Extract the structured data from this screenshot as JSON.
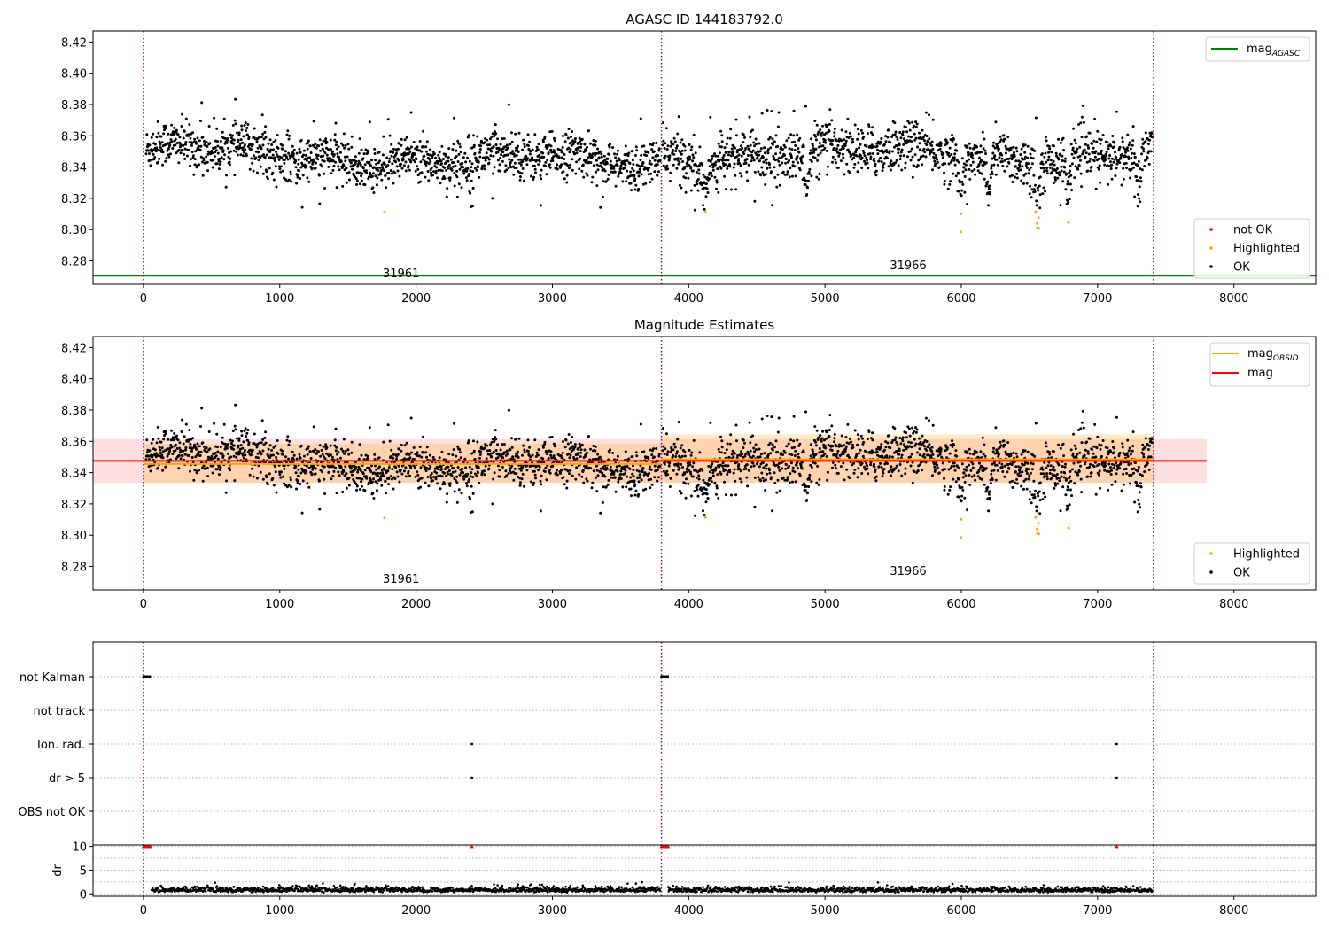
{
  "chart_data": [
    {
      "type": "scatter",
      "title": "AGASC ID 144183792.0",
      "xlim": [
        -370,
        8600
      ],
      "ylim": [
        8.265,
        8.427
      ],
      "x_ticks": [
        0,
        1000,
        2000,
        3000,
        4000,
        5000,
        6000,
        7000,
        8000
      ],
      "y_ticks": [
        8.28,
        8.3,
        8.32,
        8.34,
        8.36,
        8.38,
        8.4,
        8.42
      ],
      "grid": false,
      "obsid_boundaries": [
        0,
        3800,
        7410
      ],
      "obsid_labels": [
        {
          "text": "31961",
          "x": 1890,
          "y": 8.2725
        },
        {
          "text": "31966",
          "x": 5610,
          "y": 8.2775
        }
      ],
      "reference_lines": [
        {
          "name": "mag_AGASC",
          "value": 8.2705,
          "color": "#008000"
        }
      ],
      "segments": [
        {
          "x_start": 20,
          "x_end": 3790,
          "mean": 8.3455,
          "spread": 0.013
        },
        {
          "x_start": 3810,
          "x_end": 7400,
          "mean": 8.3485,
          "spread": 0.0145
        }
      ],
      "dips": [
        4120,
        4870,
        6000,
        6200,
        6560,
        6780,
        7300
      ],
      "series": [
        {
          "name": "not OK",
          "color": "#ff0000"
        },
        {
          "name": "Highlighted",
          "color": "#ffa500"
        },
        {
          "name": "OK",
          "color": "#000000"
        }
      ],
      "legends": [
        {
          "position": "upper-right",
          "entries": [
            {
              "label": "mag",
              "sub": "AGASC",
              "color": "#008000",
              "kind": "line"
            }
          ]
        },
        {
          "position": "lower-right",
          "entries": [
            {
              "label": "not OK",
              "color": "#ff0000",
              "kind": "point"
            },
            {
              "label": "Highlighted",
              "color": "#ffa500",
              "kind": "point"
            },
            {
              "label": "OK",
              "color": "#000000",
              "kind": "point"
            }
          ]
        }
      ]
    },
    {
      "type": "scatter",
      "title": "Magnitude Estimates",
      "xlim": [
        -370,
        8600
      ],
      "ylim": [
        8.265,
        8.427
      ],
      "x_ticks": [
        0,
        1000,
        2000,
        3000,
        4000,
        5000,
        6000,
        7000,
        8000
      ],
      "y_ticks": [
        8.28,
        8.3,
        8.32,
        8.34,
        8.36,
        8.38,
        8.4,
        8.42
      ],
      "grid": false,
      "obsid_boundaries": [
        0,
        3800,
        7410
      ],
      "obsid_labels": [
        {
          "text": "31961",
          "x": 1890,
          "y": 8.2725
        },
        {
          "text": "31966",
          "x": 5610,
          "y": 8.2775
        }
      ],
      "mag": {
        "value": 8.3475,
        "band": [
          8.3335,
          8.3615
        ],
        "x_range": [
          -370,
          7800
        ],
        "color": "#ff0000"
      },
      "mag_obsid": [
        {
          "x_start": 0,
          "x_end": 3800,
          "value": 8.3455,
          "band": [
            8.3335,
            8.3585
          ]
        },
        {
          "x_start": 3800,
          "x_end": 7410,
          "value": 8.3485,
          "band": [
            8.3335,
            8.3645
          ]
        }
      ],
      "series": [
        {
          "name": "Highlighted",
          "color": "#ffa500"
        },
        {
          "name": "OK",
          "color": "#000000"
        }
      ],
      "legends": [
        {
          "position": "upper-right",
          "entries": [
            {
              "label": "mag",
              "sub": "OBSID",
              "color": "#ffa500",
              "kind": "line"
            },
            {
              "label": "mag",
              "sub": "",
              "color": "#ff0000",
              "kind": "line"
            }
          ]
        },
        {
          "position": "lower-right",
          "entries": [
            {
              "label": "Highlighted",
              "color": "#ffa500",
              "kind": "point"
            },
            {
              "label": "OK",
              "color": "#000000",
              "kind": "point"
            }
          ]
        }
      ]
    },
    {
      "type": "scatter",
      "xlim": [
        -370,
        8600
      ],
      "categories": [
        "not Kalman",
        "not track",
        "Ion. rad.",
        "dr > 5",
        "OBS not OK"
      ],
      "grid": true,
      "obsid_boundaries": [
        0,
        3800,
        7410
      ],
      "flags": [
        {
          "category": "not Kalman",
          "x": [
            0,
            15,
            30,
            45,
            3800,
            3815,
            3830,
            3845
          ]
        },
        {
          "category": "Ion. rad.",
          "x": [
            2410,
            7140
          ]
        },
        {
          "category": "dr > 5",
          "x": [
            2410,
            7140
          ]
        }
      ]
    },
    {
      "type": "scatter",
      "ylabel": "dr",
      "xlim": [
        -370,
        8600
      ],
      "ylim": [
        -0.5,
        10.3
      ],
      "x_ticks": [
        0,
        1000,
        2000,
        3000,
        4000,
        5000,
        6000,
        7000,
        8000
      ],
      "y_ticks": [
        0,
        5,
        10
      ],
      "grid": true,
      "obsid_boundaries": [
        0,
        3800,
        7410
      ],
      "capped_points": {
        "value": 10,
        "x": [
          0,
          10,
          20,
          30,
          40,
          50,
          2410,
          3800,
          3810,
          3820,
          3830,
          3840,
          3850,
          7140
        ],
        "color": "#ff0000"
      },
      "typical_range": [
        0.3,
        1.8
      ]
    }
  ]
}
